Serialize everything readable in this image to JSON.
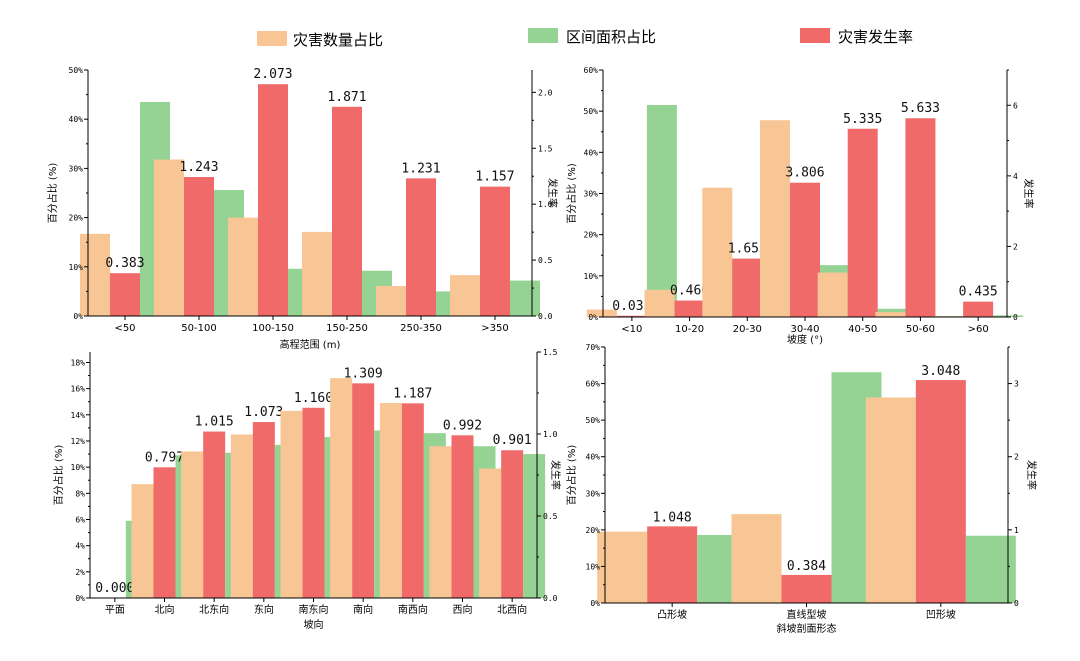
{
  "colors": {
    "count_share": "#F8C595",
    "area_share": "#95D394",
    "rate": "#F06A6A"
  },
  "legend": {
    "count_share": "灾害数量占比",
    "area_share": "区间面积占比",
    "rate": "灾害发生率"
  },
  "chart_data": [
    {
      "type": "bar",
      "xlabel": "高程范围 (m)",
      "ylabel": "百分占比 (%)",
      "y2label": "发生率",
      "categories": [
        "<50",
        "50-100",
        "100-150",
        "150-250",
        "250-350",
        ">350"
      ],
      "ylim": [
        0,
        50
      ],
      "yticks": [
        0,
        10,
        20,
        30,
        40,
        50
      ],
      "y2lim": [
        0,
        2.2
      ],
      "y2ticks": [
        0.0,
        0.5,
        1.0,
        1.5,
        2.0
      ],
      "series": [
        {
          "name": "灾害数量占比",
          "axis": "left",
          "values": [
            16.7,
            31.8,
            20.0,
            17.1,
            6.1,
            8.3
          ]
        },
        {
          "name": "区间面积占比",
          "axis": "left",
          "values": [
            43.5,
            25.6,
            9.6,
            9.2,
            5.0,
            7.2
          ]
        },
        {
          "name": "灾害发生率",
          "axis": "right",
          "values": [
            0.383,
            1.243,
            2.073,
            1.871,
            1.231,
            1.157
          ]
        }
      ],
      "data_labels": [
        "0.383",
        "1.243",
        "2.073",
        "1.871",
        "1.231",
        "1.157"
      ]
    },
    {
      "type": "bar",
      "xlabel": "坡度 (°)",
      "ylabel": "百分占比 (%)",
      "y2label": "发生率",
      "categories": [
        "<10",
        "10-20",
        "20-30",
        "30-40",
        "40-50",
        "50-60",
        ">60"
      ],
      "ylim": [
        0,
        60
      ],
      "yticks": [
        0,
        10,
        20,
        30,
        40,
        50,
        60
      ],
      "y2lim": [
        0,
        7.0
      ],
      "y2ticks": [
        0,
        2,
        4,
        6
      ],
      "series": [
        {
          "name": "灾害数量占比",
          "axis": "left",
          "values": [
            1.8,
            6.6,
            31.4,
            47.8,
            10.8,
            1.2,
            0.2
          ]
        },
        {
          "name": "区间面积占比",
          "axis": "left",
          "values": [
            51.5,
            14.2,
            19.0,
            12.6,
            2.0,
            0.2,
            0.4
          ]
        },
        {
          "name": "灾害发生率",
          "axis": "right",
          "values": [
            0.035,
            0.466,
            1.655,
            3.806,
            5.335,
            5.633,
            0.435
          ]
        }
      ],
      "data_labels": [
        "0.035",
        "0.466",
        "1.655",
        "3.806",
        "5.335",
        "5.633",
        "0.435"
      ]
    },
    {
      "type": "bar",
      "xlabel": "坡向",
      "ylabel": "百分占比 (%)",
      "y2label": "发生率",
      "categories": [
        "平面",
        "北向",
        "北东向",
        "东向",
        "南东向",
        "南向",
        "南西向",
        "西向",
        "北西向"
      ],
      "ylim": [
        0,
        18.8
      ],
      "yticks": [
        0,
        2,
        4,
        6,
        8,
        10,
        12,
        14,
        16,
        18
      ],
      "y2lim": [
        0,
        1.5
      ],
      "y2ticks": [
        0.0,
        0.5,
        1.0,
        1.5
      ],
      "series": [
        {
          "name": "灾害数量占比",
          "axis": "left",
          "values": [
            0.0,
            8.7,
            11.2,
            12.5,
            14.3,
            16.8,
            14.9,
            11.6,
            9.9
          ]
        },
        {
          "name": "区间面积占比",
          "axis": "left",
          "values": [
            5.9,
            10.9,
            11.1,
            11.7,
            12.3,
            12.8,
            12.6,
            11.6,
            11.0
          ]
        },
        {
          "name": "灾害发生率",
          "axis": "right",
          "values": [
            0.0,
            0.797,
            1.015,
            1.073,
            1.16,
            1.309,
            1.187,
            0.992,
            0.901
          ]
        }
      ],
      "data_labels": [
        "0.000",
        "0.797",
        "1.015",
        "1.073",
        "1.160",
        "1.309",
        "1.187",
        "0.992",
        "0.901"
      ]
    },
    {
      "type": "bar",
      "xlabel": "斜坡剖面形态",
      "ylabel": "百分占比 (%)",
      "y2label": "发生率",
      "categories": [
        "凸形坡",
        "直线型坡",
        "凹形坡"
      ],
      "ylim": [
        0,
        70
      ],
      "yticks": [
        0,
        10,
        20,
        30,
        40,
        50,
        60,
        70
      ],
      "y2lim": [
        0,
        3.5
      ],
      "y2ticks": [
        0,
        1,
        2,
        3
      ],
      "series": [
        {
          "name": "灾害数量占比",
          "axis": "left",
          "values": [
            19.5,
            24.3,
            56.2
          ]
        },
        {
          "name": "区间面积占比",
          "axis": "left",
          "values": [
            18.6,
            63.1,
            18.4
          ]
        },
        {
          "name": "灾害发生率",
          "axis": "right",
          "values": [
            1.048,
            0.384,
            3.048
          ]
        }
      ],
      "data_labels": [
        "1.048",
        "0.384",
        "3.048"
      ]
    }
  ]
}
